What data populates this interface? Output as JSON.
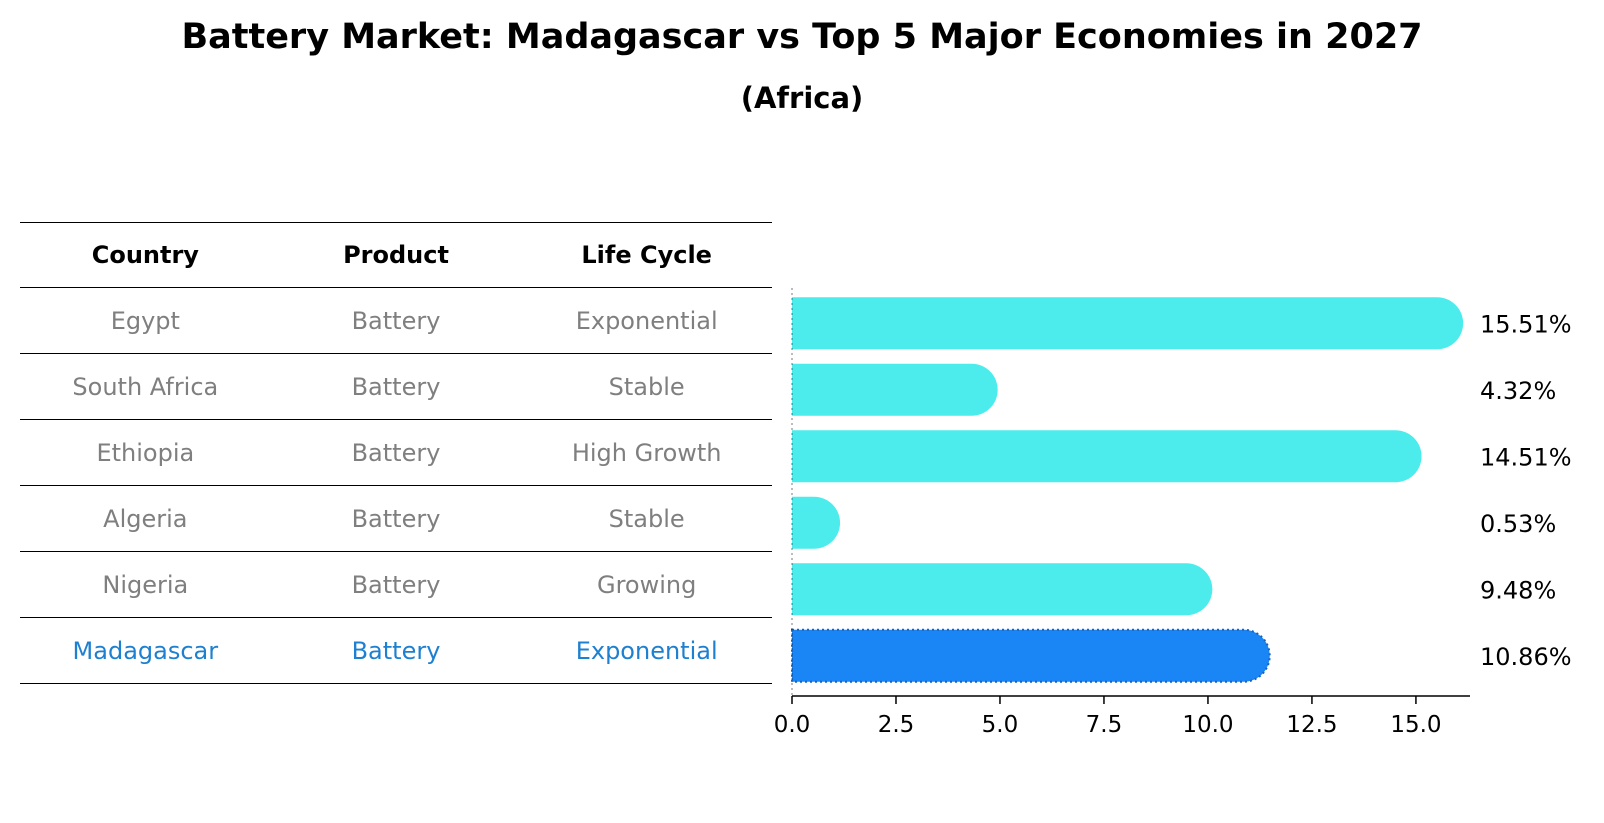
{
  "title": "Battery Market: Madagascar vs Top 5 Major Economies in 2027",
  "subtitle": "(Africa)",
  "table": {
    "headers": [
      "Country",
      "Product",
      "Life Cycle"
    ],
    "rows": [
      {
        "country": "Egypt",
        "product": "Battery",
        "life_cycle": "Exponential"
      },
      {
        "country": "South Africa",
        "product": "Battery",
        "life_cycle": "Stable"
      },
      {
        "country": "Ethiopia",
        "product": "Battery",
        "life_cycle": "High Growth"
      },
      {
        "country": "Algeria",
        "product": "Battery",
        "life_cycle": "Stable"
      },
      {
        "country": "Nigeria",
        "product": "Battery",
        "life_cycle": "Growing"
      },
      {
        "country": "Madagascar",
        "product": "Battery",
        "life_cycle": "Exponential"
      }
    ]
  },
  "colors": {
    "bar": "#4cecec",
    "highlight_bar": "#1a85f5",
    "highlight_text": "#1e80d0",
    "muted_text": "#7f7f7f"
  },
  "chart_data": {
    "type": "bar",
    "orientation": "horizontal",
    "categories": [
      "Egypt",
      "South Africa",
      "Ethiopia",
      "Algeria",
      "Nigeria",
      "Madagascar"
    ],
    "values": [
      15.51,
      4.32,
      14.51,
      0.53,
      9.48,
      10.86
    ],
    "value_labels": [
      "15.51%",
      "4.32%",
      "14.51%",
      "0.53%",
      "9.48%",
      "10.86%"
    ],
    "highlight": "Madagascar",
    "xlim": [
      0,
      16.3
    ],
    "xticks": [
      0.0,
      2.5,
      5.0,
      7.5,
      10.0,
      12.5,
      15.0
    ],
    "xtick_labels": [
      "0.0",
      "2.5",
      "5.0",
      "7.5",
      "10.0",
      "12.5",
      "15.0"
    ],
    "grid": false
  }
}
